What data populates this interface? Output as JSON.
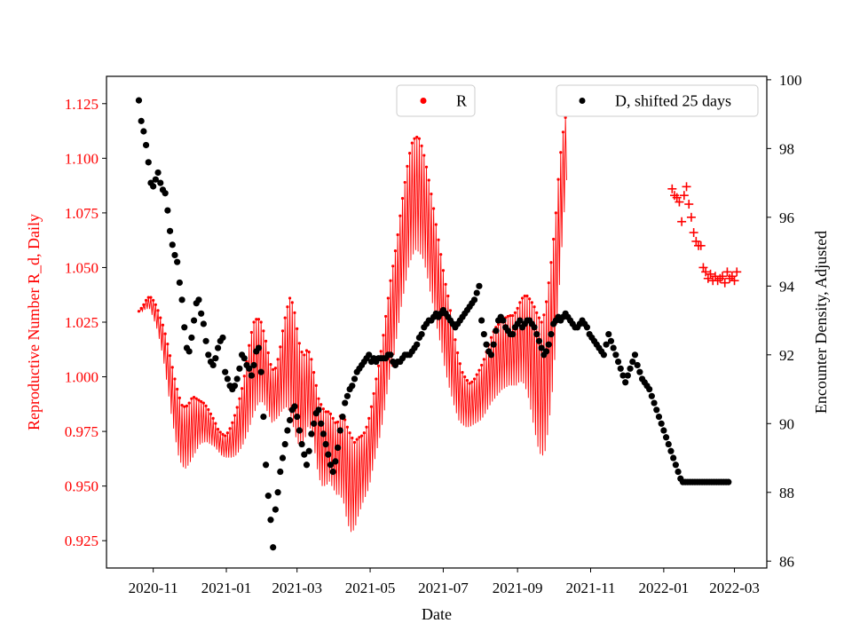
{
  "colors": {
    "r_series": "#ff0000",
    "d_series": "#000000",
    "axis": "#000000"
  },
  "chart_data": {
    "type": "scatter",
    "xlabel": "Date",
    "ylabel_left": "Reproductive Number R_d, Daily",
    "ylabel_right": "Encounter Density, Adjusted",
    "x_tick_labels": [
      "2020-11",
      "2021-01",
      "2021-03",
      "2021-05",
      "2021-07",
      "2021-09",
      "2021-11",
      "2022-01",
      "2022-03"
    ],
    "x_tick_dates": [
      "2020-11-01",
      "2021-01-01",
      "2021-03-01",
      "2021-05-01",
      "2021-07-01",
      "2021-09-01",
      "2021-11-01",
      "2022-01-01",
      "2022-03-01"
    ],
    "xlim": [
      "2020-09-23",
      "2022-03-28"
    ],
    "ylim_left": [
      0.9125,
      1.1375
    ],
    "ylim_right": [
      85.8,
      100.1
    ],
    "y_left_ticks": [
      "0.925",
      "0.950",
      "0.975",
      "1.000",
      "1.025",
      "1.050",
      "1.075",
      "1.100",
      "1.125"
    ],
    "y_right_ticks": [
      "86",
      "88",
      "90",
      "92",
      "94",
      "96",
      "98",
      "100"
    ],
    "legend": [
      {
        "label": "R",
        "marker": "dot",
        "placement": "top-center"
      },
      {
        "label": "D, shifted 25 days",
        "marker": "dot",
        "placement": "top-right"
      }
    ],
    "series": [
      {
        "name": "R",
        "axis": "left",
        "marker": "dot-with-daily-oscillation",
        "start_date": "2020-10-20",
        "step_days": 3,
        "values": [
          1.03,
          1.031,
          1.033,
          1.034,
          1.031,
          1.027,
          1.021,
          1.014,
          1.005,
          0.995,
          0.986,
          0.978,
          0.973,
          0.972,
          0.974,
          0.977,
          0.978,
          0.979,
          0.979,
          0.978,
          0.976,
          0.974,
          0.971,
          0.969,
          0.968,
          0.969,
          0.971,
          0.974,
          0.978,
          0.983,
          0.99,
          0.998,
          1.004,
          1.007,
          1.007,
          1.003,
          0.997,
          0.991,
          0.992,
          0.996,
          1.003,
          1.008,
          1.01,
          1.005,
          0.996,
          0.99,
          0.99,
          0.995,
          0.992,
          0.982,
          0.972,
          0.968,
          0.967,
          0.968,
          0.965,
          0.962,
          0.964,
          0.962,
          0.955,
          0.951,
          0.95,
          0.954,
          0.957,
          0.96,
          0.965,
          0.973,
          0.982,
          0.99,
          1.0,
          1.012,
          1.023,
          1.032,
          1.043,
          1.055,
          1.065,
          1.075,
          1.081,
          1.084,
          1.083,
          1.079,
          1.072,
          1.063,
          1.054,
          1.044,
          1.035,
          1.025,
          1.017,
          1.009,
          1.001,
          0.994,
          0.99,
          0.988,
          0.987,
          0.988,
          0.99,
          0.992,
          0.995,
          0.999,
          1.003,
          1.006,
          1.008,
          1.01,
          1.011,
          1.012,
          1.012,
          1.013,
          1.016,
          1.017,
          1.015,
          1.01,
          1.004,
          0.998,
          0.994,
          0.998,
          1.01,
          1.025,
          1.045,
          1.07,
          1.09,
          1.106
        ],
        "amplitudes": [
          0,
          0.001,
          0.002,
          0.003,
          0.004,
          0.005,
          0.006,
          0.008,
          0.01,
          0.012,
          0.013,
          0.014,
          0.014,
          0.014,
          0.014,
          0.014,
          0.012,
          0.01,
          0.009,
          0.008,
          0.007,
          0.006,
          0.005,
          0.005,
          0.005,
          0.006,
          0.008,
          0.01,
          0.012,
          0.014,
          0.017,
          0.02,
          0.021,
          0.02,
          0.018,
          0.016,
          0.014,
          0.012,
          0.012,
          0.014,
          0.018,
          0.022,
          0.026,
          0.028,
          0.026,
          0.022,
          0.02,
          0.018,
          0.016,
          0.017,
          0.018,
          0.018,
          0.017,
          0.016,
          0.016,
          0.016,
          0.018,
          0.02,
          0.022,
          0.022,
          0.02,
          0.018,
          0.016,
          0.015,
          0.016,
          0.016,
          0.017,
          0.018,
          0.019,
          0.02,
          0.021,
          0.022,
          0.022,
          0.023,
          0.024,
          0.025,
          0.026,
          0.026,
          0.026,
          0.025,
          0.024,
          0.024,
          0.023,
          0.022,
          0.021,
          0.02,
          0.02,
          0.018,
          0.016,
          0.014,
          0.012,
          0.011,
          0.01,
          0.01,
          0.011,
          0.012,
          0.013,
          0.014,
          0.015,
          0.016,
          0.016,
          0.016,
          0.016,
          0.016,
          0.016,
          0.017,
          0.018,
          0.02,
          0.022,
          0.025,
          0.028,
          0.03,
          0.031,
          0.032,
          0.033,
          0.032,
          0.03,
          0.028,
          0.022,
          0.016
        ],
        "late_points": {
          "dates": [
            "2022-01-08",
            "2022-01-10",
            "2022-01-12",
            "2022-01-14",
            "2022-01-16",
            "2022-01-18",
            "2022-01-20",
            "2022-01-22",
            "2022-01-24",
            "2022-01-26",
            "2022-01-28",
            "2022-01-30",
            "2022-02-01",
            "2022-02-03",
            "2022-02-05",
            "2022-02-07",
            "2022-02-09",
            "2022-02-11",
            "2022-02-13",
            "2022-02-15",
            "2022-02-17",
            "2022-02-19",
            "2022-02-21",
            "2022-02-23",
            "2022-02-25",
            "2022-02-27",
            "2022-03-01",
            "2022-03-03"
          ],
          "values": [
            1.086,
            1.083,
            1.082,
            1.08,
            1.071,
            1.083,
            1.087,
            1.079,
            1.073,
            1.066,
            1.062,
            1.06,
            1.06,
            1.05,
            1.048,
            1.045,
            1.047,
            1.044,
            1.046,
            1.044,
            1.045,
            1.046,
            1.043,
            1.048,
            1.045,
            1.046,
            1.044,
            1.048
          ]
        }
      },
      {
        "name": "D, shifted 25 days",
        "axis": "right",
        "marker": "dot",
        "start_date": "2020-10-20",
        "step_days": 2,
        "values": [
          99.4,
          98.8,
          98.5,
          98.1,
          97.6,
          97.0,
          96.9,
          97.1,
          97.3,
          97.0,
          96.8,
          96.7,
          96.2,
          95.6,
          95.2,
          94.9,
          94.7,
          94.1,
          93.6,
          92.8,
          92.2,
          92.1,
          92.5,
          93.0,
          93.5,
          93.6,
          93.2,
          92.9,
          92.4,
          92.0,
          91.8,
          91.7,
          91.9,
          92.2,
          92.4,
          92.5,
          91.5,
          91.3,
          91.1,
          91.0,
          91.1,
          91.3,
          91.6,
          92.0,
          91.9,
          91.7,
          91.6,
          91.4,
          91.7,
          92.1,
          92.2,
          91.5,
          90.2,
          88.8,
          87.9,
          87.2,
          86.4,
          87.5,
          88.0,
          88.6,
          89.0,
          89.4,
          89.8,
          90.1,
          90.4,
          90.5,
          90.2,
          89.8,
          89.4,
          89.1,
          88.8,
          89.2,
          89.7,
          90.0,
          90.3,
          90.4,
          90.0,
          89.7,
          89.4,
          89.1,
          88.8,
          88.6,
          88.9,
          89.3,
          89.8,
          90.2,
          90.6,
          90.8,
          91.0,
          91.1,
          91.3,
          91.5,
          91.6,
          91.7,
          91.8,
          91.9,
          92.0,
          91.8,
          91.9,
          91.8,
          91.9,
          91.9,
          91.9,
          91.9,
          92.0,
          92.0,
          91.8,
          91.7,
          91.8,
          91.8,
          91.9,
          92.0,
          92.0,
          92.0,
          92.1,
          92.2,
          92.3,
          92.5,
          92.6,
          92.8,
          92.9,
          93.0,
          93.0,
          93.1,
          93.2,
          93.1,
          93.2,
          93.3,
          93.2,
          93.1,
          93.0,
          92.9,
          92.8,
          92.9,
          93.0,
          93.1,
          93.2,
          93.3,
          93.4,
          93.5,
          93.6,
          93.8,
          94.0,
          93.0,
          92.6,
          92.3,
          92.1,
          92.0,
          92.3,
          92.7,
          93.0,
          93.1,
          93.0,
          92.8,
          92.7,
          92.6,
          92.6,
          92.8,
          92.9,
          93.0,
          92.8,
          92.9,
          93.0,
          93.0,
          92.9,
          92.8,
          92.6,
          92.4,
          92.2,
          92.0,
          92.1,
          92.3,
          92.6,
          92.9,
          93.0,
          93.1,
          93.0,
          93.1,
          93.2,
          93.1,
          93.0,
          92.9,
          92.8,
          92.8,
          92.9,
          93.0,
          92.9,
          92.8,
          92.6,
          92.5,
          92.4,
          92.3,
          92.2,
          92.1,
          92.0,
          92.3,
          92.6,
          92.4,
          92.2,
          92.0,
          91.8,
          91.6,
          91.4,
          91.2,
          91.4,
          91.6,
          91.8,
          92.0,
          91.7,
          91.5,
          91.3,
          91.2,
          91.1,
          91.0,
          90.8,
          90.6,
          90.4,
          90.2,
          90.0,
          89.8,
          89.6,
          89.4,
          89.2,
          89.0,
          88.8,
          88.6,
          88.4,
          88.3,
          88.3,
          88.3,
          88.3,
          88.3,
          88.3,
          88.3,
          88.3,
          88.3,
          88.3,
          88.3,
          88.3,
          88.3,
          88.3,
          88.3,
          88.3,
          88.3,
          88.3,
          88.3,
          88.3
        ]
      }
    ]
  }
}
